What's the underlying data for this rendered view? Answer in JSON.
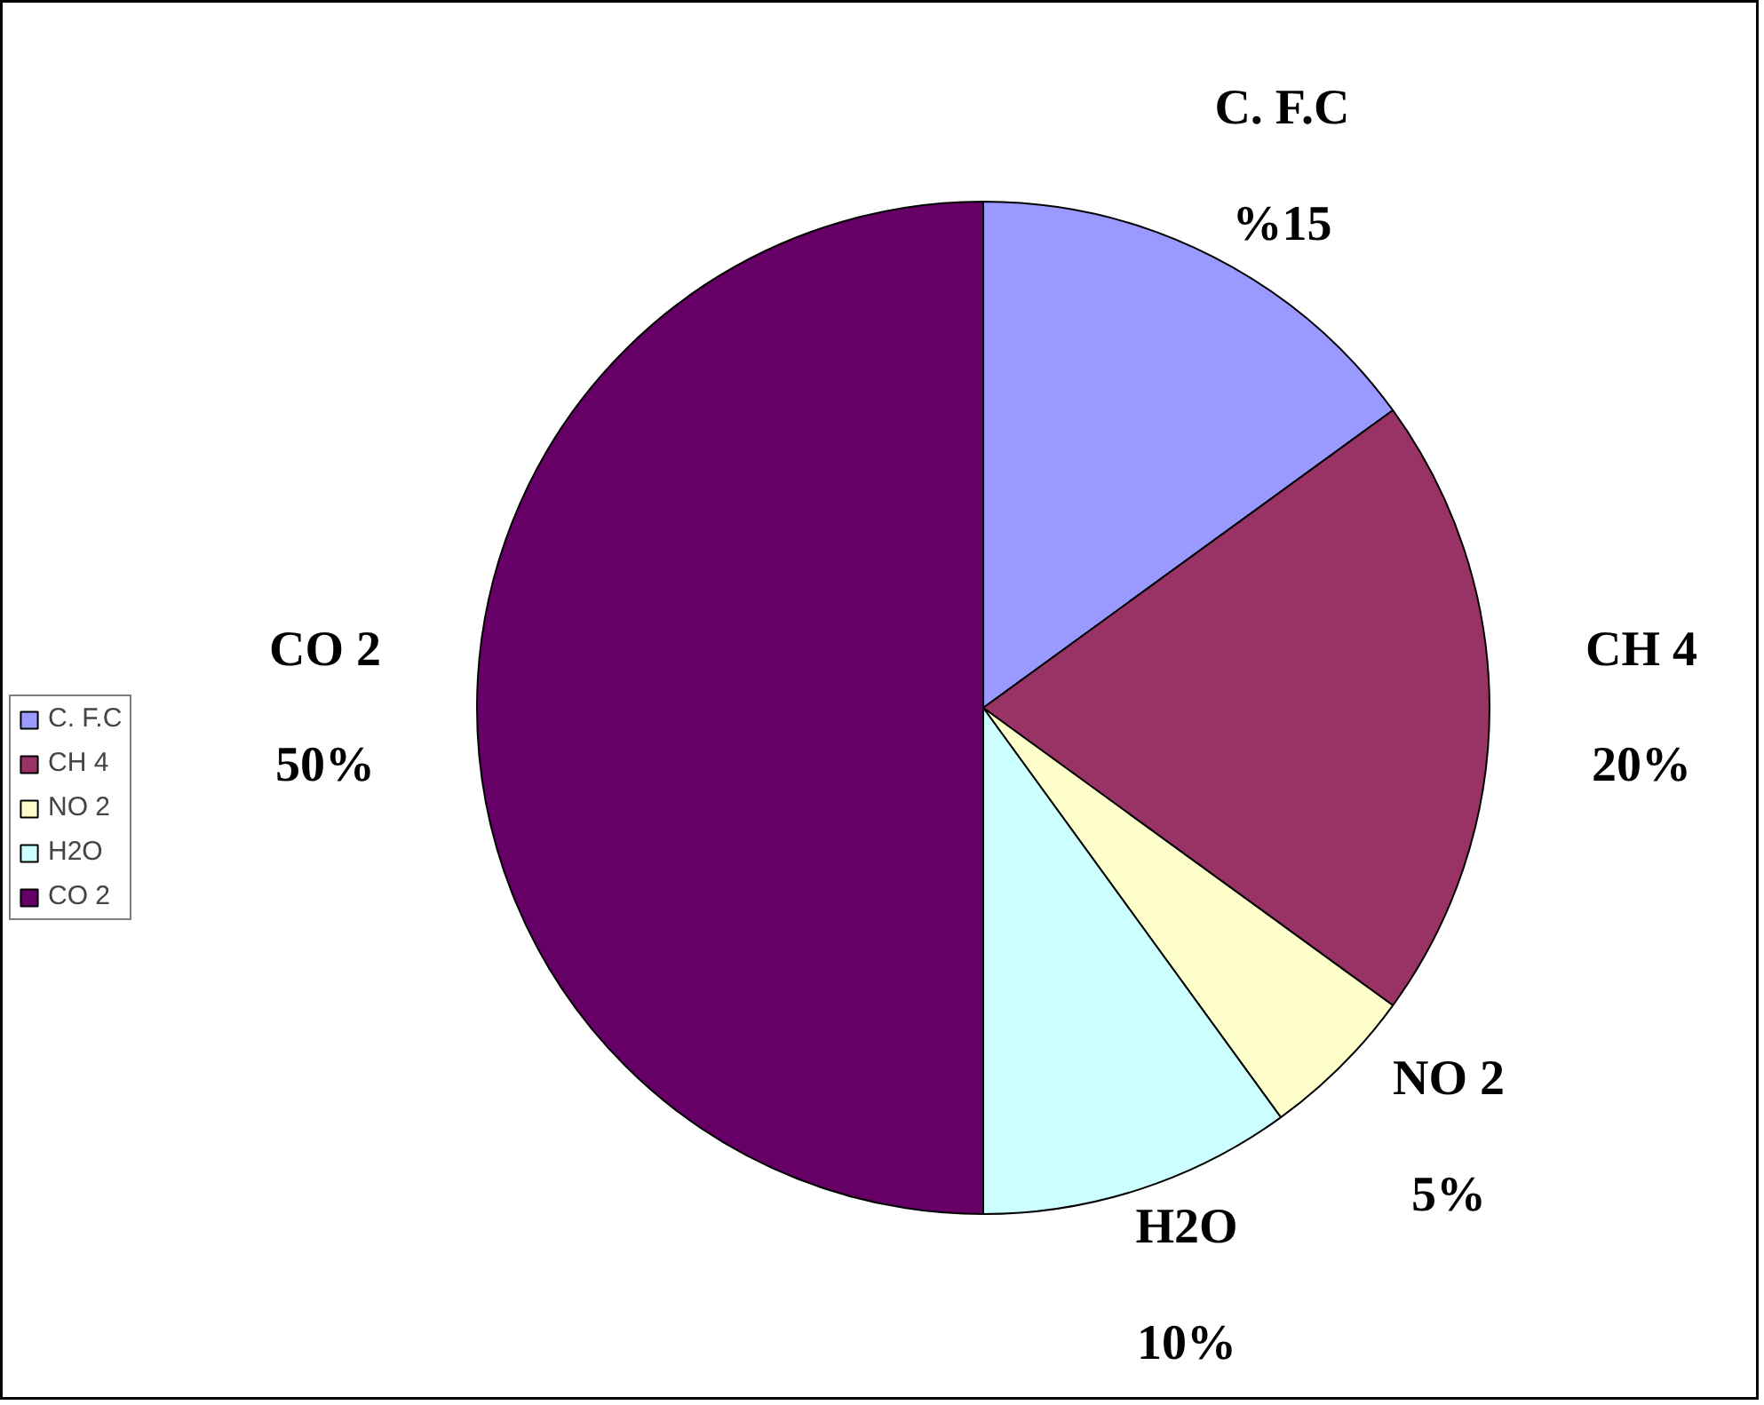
{
  "chart_data": {
    "type": "pie",
    "categories": [
      "C. F.C",
      "CH 4",
      "NO 2",
      "H2O",
      "CO 2"
    ],
    "values": [
      15,
      20,
      5,
      10,
      50
    ],
    "colors": [
      "#9999ff",
      "#993366",
      "#ffffcc",
      "#ccffff",
      "#660066"
    ],
    "value_labels": [
      "%15",
      "20%",
      "5%",
      "10%",
      "50%"
    ],
    "legend": "left"
  }
}
